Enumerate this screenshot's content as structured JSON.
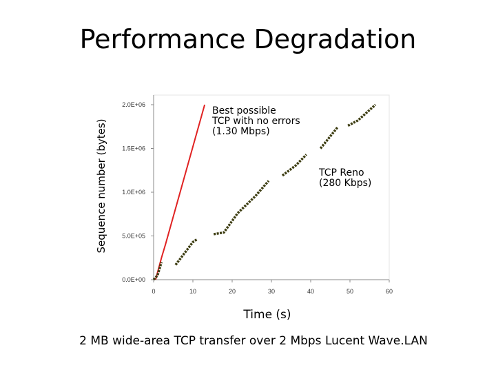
{
  "chart_data": {
    "type": "line",
    "title": "Performance Degradation",
    "x_label": "Time (s)",
    "y_label": "Sequence number (bytes)",
    "caption": "2 MB wide-area TCP transfer over 2 Mbps Lucent Wave.LAN",
    "xlim": [
      0,
      60
    ],
    "xticks": [
      0,
      10,
      20,
      30,
      40,
      50,
      60
    ],
    "ylim": [
      0,
      2000000
    ],
    "yticks": [
      {
        "value": 0,
        "label": "0.0E+00"
      },
      {
        "value": 500000,
        "label": "5.0E+05"
      },
      {
        "value": 1000000,
        "label": "1.0E+06"
      },
      {
        "value": 1500000,
        "label": "1.5E+06"
      },
      {
        "value": 2000000,
        "label": "2.0E+06"
      }
    ],
    "series": [
      {
        "name": "Best possible TCP with no errors (1.30 Mbps)",
        "color": "#e02222",
        "dashed": false,
        "x": [
          0.5,
          2,
          3,
          13
        ],
        "values": [
          0,
          250000,
          400000,
          2000000
        ]
      },
      {
        "name": "TCP Reno (280 Kbps)",
        "color": "#3d3d12",
        "dashed": true,
        "x": [
          0,
          1,
          2,
          null,
          5.6,
          6.8,
          10,
          11,
          null,
          15.3,
          17.9,
          21.4,
          25.8,
          29.3,
          null,
          32.8,
          36.3,
          38.9,
          null,
          42.5,
          46.8,
          null,
          49.5,
          52,
          56.5
        ],
        "values": [
          0,
          50000,
          200000,
          null,
          170000,
          240000,
          430000,
          460000,
          null,
          520000,
          540000,
          760000,
          950000,
          1130000,
          null,
          1190000,
          1310000,
          1430000,
          null,
          1500000,
          1740000,
          null,
          1760000,
          1820000,
          2000000
        ]
      }
    ],
    "annotations": [
      {
        "lines": [
          "Best possible",
          "TCP with no errors",
          "(1.30 Mbps)"
        ]
      },
      {
        "lines": [
          "TCP Reno",
          "(280 Kbps)"
        ]
      }
    ]
  }
}
